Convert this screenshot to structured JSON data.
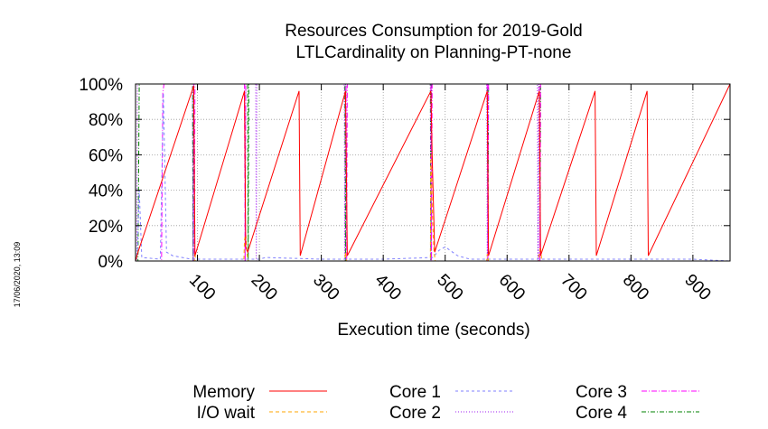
{
  "chart_data": {
    "type": "line",
    "title": [
      "Resources Consumption for 2019-Gold",
      "LTLCardinality on Planning-PT-none"
    ],
    "xlabel": "Execution time (seconds)",
    "ylabel": "",
    "xlim": [
      0,
      960
    ],
    "ylim": [
      0,
      100
    ],
    "x_ticks": [
      100,
      200,
      300,
      400,
      500,
      600,
      700,
      800,
      900
    ],
    "y_ticks": [
      0,
      20,
      40,
      60,
      80,
      100
    ],
    "y_tick_labels": [
      "0%",
      "20%",
      "40%",
      "60%",
      "80%",
      "100%"
    ],
    "grid": true,
    "legend_position": "bottom",
    "timestamp": "17/06/2020, 13:09",
    "series": [
      {
        "name": "Memory",
        "color": "#ff0000",
        "dash": "solid",
        "x": [
          0,
          4,
          94,
          96,
          176,
          178,
          181,
          264,
          266,
          339,
          342,
          477,
          479,
          483,
          568,
          570,
          652,
          654,
          742,
          744,
          826,
          828,
          960
        ],
        "y": [
          0,
          5,
          99,
          3,
          96,
          8,
          5,
          96,
          3,
          96,
          3,
          96,
          60,
          5,
          96,
          3,
          96,
          3,
          96,
          3,
          96,
          3,
          100
        ]
      },
      {
        "name": "I/O wait",
        "color": "#ffa500",
        "dash": "4,3",
        "x": [
          0,
          95,
          96,
          97,
          175,
          176,
          178,
          180,
          182,
          338,
          339,
          341,
          476,
          477,
          480,
          482,
          484,
          567,
          568,
          570,
          651,
          652,
          654,
          656,
          960
        ],
        "y": [
          0,
          0,
          5,
          0,
          0,
          12,
          15,
          4,
          0,
          0,
          5,
          0,
          0,
          60,
          20,
          5,
          0,
          0,
          4,
          0,
          0,
          5,
          8,
          0,
          0
        ]
      },
      {
        "name": "Core 1",
        "color": "#8080ff",
        "dash": "3,3",
        "x": [
          0,
          3,
          6,
          10,
          40,
          45,
          50,
          60,
          90,
          200,
          210,
          300,
          400,
          480,
          490,
          500,
          520,
          540,
          600,
          700,
          800,
          900,
          960
        ],
        "y": [
          0,
          5,
          40,
          2,
          1,
          95,
          5,
          3,
          1,
          1,
          2,
          1,
          1,
          2,
          6,
          8,
          3,
          1,
          1,
          1,
          1,
          1,
          0
        ]
      },
      {
        "name": "Core 2",
        "color": "#a020f0",
        "dash": "1,2",
        "x": [
          0,
          2,
          3,
          92,
          93,
          94,
          176,
          177,
          178,
          194,
          195,
          196,
          337,
          338,
          339,
          476,
          477,
          478,
          567,
          568,
          569,
          649,
          650,
          651,
          960
        ],
        "y": [
          0,
          0,
          100,
          100,
          0,
          100,
          100,
          0,
          100,
          100,
          0,
          100,
          100,
          0,
          100,
          100,
          0,
          100,
          100,
          0,
          100,
          100,
          0,
          100,
          100
        ]
      },
      {
        "name": "Core 3",
        "color": "#ff00ff",
        "dash": "6,2,1,2",
        "x": [
          0,
          42,
          44,
          46,
          94,
          95,
          96,
          176,
          177,
          178,
          340,
          341,
          342,
          477,
          478,
          479,
          568,
          569,
          570,
          652,
          653,
          654,
          960
        ],
        "y": [
          0,
          0,
          95,
          100,
          100,
          0,
          100,
          100,
          0,
          100,
          100,
          0,
          100,
          100,
          0,
          100,
          100,
          0,
          100,
          100,
          0,
          100,
          100
        ]
      },
      {
        "name": "Core 4",
        "color": "#008000",
        "dash": "5,2,1,2",
        "x": [
          0,
          4,
          6,
          92,
          93,
          94,
          181,
          182,
          183,
          338,
          339,
          340,
          476,
          477,
          478,
          568,
          569,
          570,
          652,
          653,
          654,
          960
        ],
        "y": [
          0,
          0,
          100,
          100,
          0,
          100,
          100,
          0,
          100,
          100,
          0,
          100,
          100,
          0,
          100,
          100,
          0,
          100,
          100,
          0,
          100,
          100
        ]
      }
    ]
  }
}
